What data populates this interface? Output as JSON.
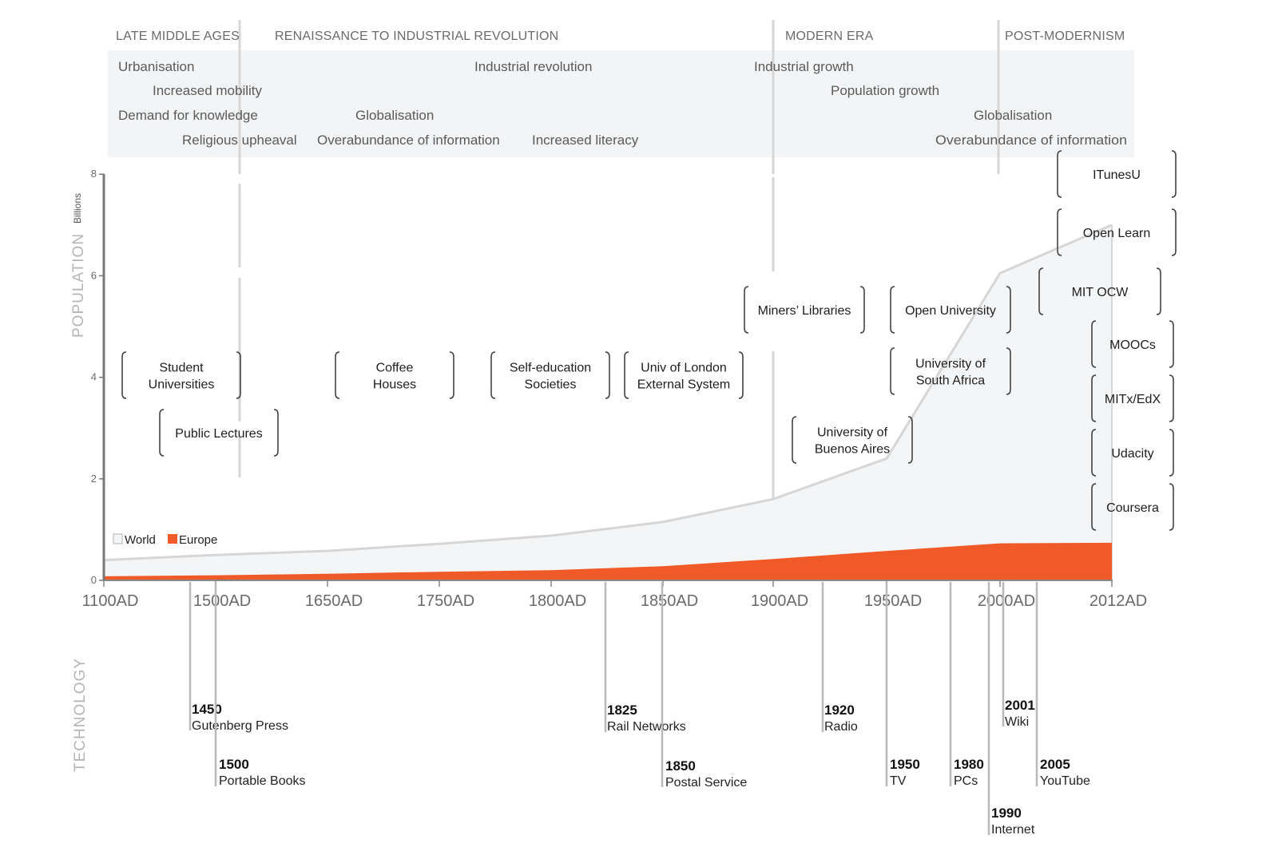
{
  "chart_data": {
    "type": "area",
    "title": "",
    "ylabel": "POPULATION",
    "yunit": "Billions",
    "ylim": [
      0,
      8
    ],
    "yticks": [
      0,
      2,
      4,
      6,
      8
    ],
    "xticks": [
      {
        "year": 1100,
        "label": "1100AD"
      },
      {
        "year": 1500,
        "label": "1500AD"
      },
      {
        "year": 1650,
        "label": "1650AD"
      },
      {
        "year": 1750,
        "label": "1750AD"
      },
      {
        "year": 1800,
        "label": "1800AD"
      },
      {
        "year": 1850,
        "label": "1850AD"
      },
      {
        "year": 1900,
        "label": "1900AD"
      },
      {
        "year": 1950,
        "label": "1950AD"
      },
      {
        "year": 2000,
        "label": "2000AD"
      },
      {
        "year": 2012,
        "label": "2012AD"
      }
    ],
    "legend": [
      "World",
      "Europe"
    ],
    "series": [
      {
        "name": "World",
        "color": "#f4f5f6",
        "line": "#d6d6d6",
        "points": [
          [
            1100,
            0.4
          ],
          [
            1500,
            0.5
          ],
          [
            1650,
            0.58
          ],
          [
            1750,
            0.72
          ],
          [
            1800,
            0.88
          ],
          [
            1850,
            1.15
          ],
          [
            1900,
            1.6
          ],
          [
            1950,
            2.4
          ],
          [
            2000,
            6.05
          ],
          [
            2012,
            7.0
          ]
        ]
      },
      {
        "name": "Europe",
        "color": "#f05a28",
        "points": [
          [
            1100,
            0.08
          ],
          [
            1500,
            0.1
          ],
          [
            1650,
            0.13
          ],
          [
            1750,
            0.17
          ],
          [
            1800,
            0.2
          ],
          [
            1850,
            0.28
          ],
          [
            1900,
            0.42
          ],
          [
            1950,
            0.58
          ],
          [
            2000,
            0.73
          ],
          [
            2012,
            0.74
          ]
        ]
      }
    ],
    "eras": [
      "LATE MIDDLE AGES",
      "RENAISSANCE TO INDUSTRIAL REVOLUTION",
      "MODERN ERA",
      "POST-MODERNISM"
    ],
    "drivers": [
      "Urbanisation",
      "Increased mobility",
      "Demand for knowledge",
      "Religious upheaval",
      "Globalisation",
      "Overabundance of information",
      "Increased literacy",
      "Industrial revolution",
      "Industrial growth",
      "Population growth",
      "Globalisation",
      "Overabundance of information"
    ],
    "events": [
      [
        "Student",
        "Universities"
      ],
      [
        "Public Lectures"
      ],
      [
        "Coffee",
        "Houses"
      ],
      [
        "Self-education",
        "Societies"
      ],
      [
        "Univ of London",
        "External System"
      ],
      [
        "Miners’ Libraries"
      ],
      [
        "University of",
        "Buenos Aires"
      ],
      [
        "Open University"
      ],
      [
        "University of",
        "South Africa"
      ],
      [
        "ITunesU"
      ],
      [
        "Open Learn"
      ],
      [
        "MIT OCW"
      ],
      [
        "MOOCs"
      ],
      [
        "MITx/EdX"
      ],
      [
        "Udacity"
      ],
      [
        "Coursera"
      ]
    ],
    "technology_title": "TECHNOLOGY",
    "technology": [
      {
        "year": "1450",
        "name": "Gutenberg Press"
      },
      {
        "year": "1500",
        "name": "Portable Books"
      },
      {
        "year": "1825",
        "name": "Rail Networks"
      },
      {
        "year": "1850",
        "name": "Postal Service"
      },
      {
        "year": "1920",
        "name": "Radio"
      },
      {
        "year": "1950",
        "name": "TV"
      },
      {
        "year": "1980",
        "name": "PCs"
      },
      {
        "year": "1990",
        "name": "Internet"
      },
      {
        "year": "2001",
        "name": "Wiki"
      },
      {
        "year": "2005",
        "name": "YouTube"
      }
    ]
  }
}
